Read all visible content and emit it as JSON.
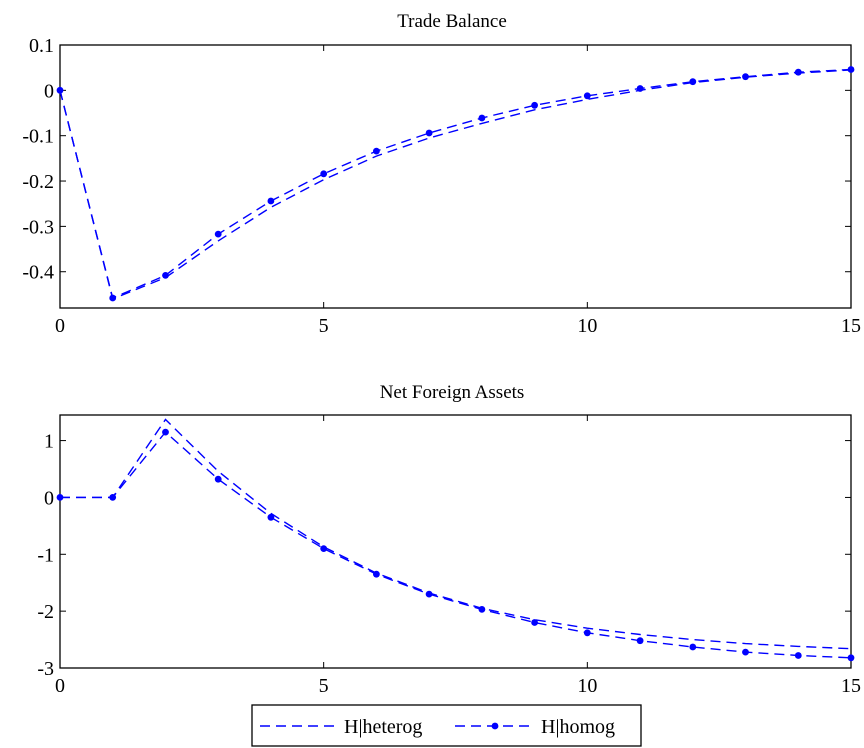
{
  "chart_data": [
    {
      "type": "line",
      "title": "Trade Balance",
      "xlabel": "",
      "ylabel": "",
      "xlim": [
        0,
        15
      ],
      "ylim": [
        -0.48,
        0.1
      ],
      "xticks": [
        0,
        5,
        10,
        15
      ],
      "xtick_labels": [
        "0",
        "5",
        "10",
        "15"
      ],
      "yticks": [
        0.1,
        0,
        -0.1,
        -0.2,
        -0.3,
        -0.4
      ],
      "ytick_labels": [
        "0.1",
        "0",
        "-0.1",
        "-0.2",
        "-0.3",
        "-0.4"
      ],
      "grid": false,
      "x": [
        0,
        1,
        2,
        3,
        4,
        5,
        6,
        7,
        8,
        9,
        10,
        11,
        12,
        13,
        14,
        15
      ],
      "series": [
        {
          "name": "H|heterog",
          "style": "dashed",
          "marker": "none",
          "color": "#0000ff",
          "values": [
            0,
            -0.46,
            -0.413,
            -0.332,
            -0.258,
            -0.197,
            -0.145,
            -0.105,
            -0.073,
            -0.043,
            -0.02,
            0,
            0.017,
            0.029,
            0.038,
            0.045
          ]
        },
        {
          "name": "H|homog",
          "style": "dashed",
          "marker": "dot",
          "color": "#0000ff",
          "values": [
            0,
            -0.458,
            -0.408,
            -0.317,
            -0.244,
            -0.184,
            -0.134,
            -0.094,
            -0.061,
            -0.033,
            -0.012,
            0.004,
            0.019,
            0.03,
            0.04,
            0.046
          ]
        }
      ]
    },
    {
      "type": "line",
      "title": "Net Foreign Assets",
      "xlabel": "",
      "ylabel": "",
      "xlim": [
        0,
        15
      ],
      "ylim": [
        -3,
        1.45
      ],
      "xticks": [
        0,
        5,
        10,
        15
      ],
      "xtick_labels": [
        "0",
        "5",
        "10",
        "15"
      ],
      "yticks": [
        1,
        0,
        -1,
        -2,
        -3
      ],
      "ytick_labels": [
        "1",
        "0",
        "-1",
        "-2",
        "-3"
      ],
      "grid": false,
      "x": [
        0,
        1,
        2,
        3,
        4,
        5,
        6,
        7,
        8,
        9,
        10,
        11,
        12,
        13,
        14,
        15
      ],
      "series": [
        {
          "name": "H|heterog",
          "style": "dashed",
          "marker": "none",
          "color": "#0000ff",
          "values": [
            0,
            0,
            1.37,
            0.46,
            -0.28,
            -0.87,
            -1.33,
            -1.68,
            -1.95,
            -2.15,
            -2.3,
            -2.41,
            -2.5,
            -2.57,
            -2.62,
            -2.66
          ]
        },
        {
          "name": "H|homog",
          "style": "dashed",
          "marker": "dot",
          "color": "#0000ff",
          "values": [
            0,
            0,
            1.15,
            0.32,
            -0.35,
            -0.9,
            -1.35,
            -1.7,
            -1.97,
            -2.2,
            -2.38,
            -2.52,
            -2.63,
            -2.72,
            -2.78,
            -2.82
          ]
        }
      ]
    }
  ],
  "legend": {
    "placement": "bottom-center",
    "entries": [
      {
        "label": "H|heterog",
        "marker": "none"
      },
      {
        "label": "H|homog",
        "marker": "dot"
      }
    ]
  },
  "colors": {
    "series": "#0000ff",
    "axes": "#000000",
    "background": "#ffffff"
  }
}
